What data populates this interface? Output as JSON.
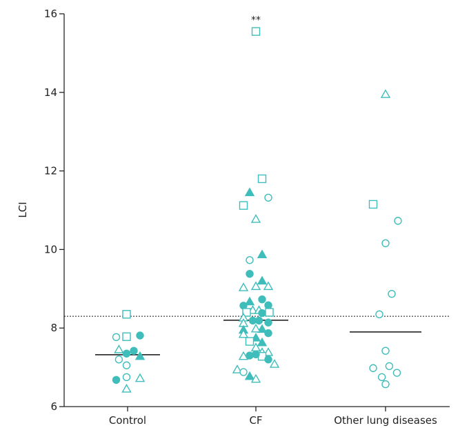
{
  "colors": {
    "marker": "#3fbdbb",
    "axis": "#222222",
    "line": "#111111"
  },
  "chart_data": {
    "type": "scatter",
    "ylabel": "LCI",
    "xlabel": "",
    "ylim": [
      6,
      16
    ],
    "yticks": [
      6,
      8,
      10,
      12,
      14,
      16
    ],
    "categories": [
      "Control",
      "CF",
      "Other lung diseases"
    ],
    "threshold_line": {
      "y": 8.3,
      "style": "dotted"
    },
    "means": [
      7.32,
      8.2,
      7.9
    ],
    "annotations": [
      {
        "text": "**",
        "category": "CF",
        "y": 15.85
      }
    ],
    "points": [
      {
        "g": 0,
        "dx": -0.55,
        "y": 7.77,
        "m": "circle",
        "f": false
      },
      {
        "g": 0,
        "dx": -0.42,
        "y": 7.45,
        "m": "triangle",
        "f": false
      },
      {
        "g": 0,
        "dx": -0.42,
        "y": 7.2,
        "m": "circle",
        "f": false
      },
      {
        "g": 0,
        "dx": -0.55,
        "y": 6.68,
        "m": "circle",
        "f": true
      },
      {
        "g": 0,
        "dx": -0.05,
        "y": 8.35,
        "m": "square",
        "f": false
      },
      {
        "g": 0,
        "dx": -0.05,
        "y": 7.78,
        "m": "square",
        "f": false
      },
      {
        "g": 0,
        "dx": -0.05,
        "y": 7.35,
        "m": "circle",
        "f": true
      },
      {
        "g": 0,
        "dx": 0.3,
        "y": 7.42,
        "m": "circle",
        "f": true
      },
      {
        "g": 0,
        "dx": -0.05,
        "y": 7.05,
        "m": "circle",
        "f": false
      },
      {
        "g": 0,
        "dx": -0.05,
        "y": 6.75,
        "m": "circle",
        "f": false
      },
      {
        "g": 0,
        "dx": -0.05,
        "y": 6.45,
        "m": "triangle",
        "f": false
      },
      {
        "g": 0,
        "dx": 0.6,
        "y": 7.81,
        "m": "circle",
        "f": true
      },
      {
        "g": 0,
        "dx": 0.6,
        "y": 7.28,
        "m": "triangle",
        "f": true
      },
      {
        "g": 0,
        "dx": 0.6,
        "y": 6.72,
        "m": "triangle",
        "f": false
      },
      {
        "g": 1,
        "dx": 0.0,
        "y": 15.55,
        "m": "square",
        "f": false
      },
      {
        "g": 1,
        "dx": -0.3,
        "y": 11.45,
        "m": "triangle",
        "f": true
      },
      {
        "g": 1,
        "dx": 0.3,
        "y": 11.8,
        "m": "square",
        "f": false
      },
      {
        "g": 1,
        "dx": -0.6,
        "y": 11.12,
        "m": "square",
        "f": false
      },
      {
        "g": 1,
        "dx": 0.6,
        "y": 11.32,
        "m": "circle",
        "f": false
      },
      {
        "g": 1,
        "dx": 0.0,
        "y": 10.77,
        "m": "triangle",
        "f": false
      },
      {
        "g": 1,
        "dx": 0.3,
        "y": 9.87,
        "m": "triangle",
        "f": true
      },
      {
        "g": 1,
        "dx": -0.3,
        "y": 9.73,
        "m": "circle",
        "f": false
      },
      {
        "g": 1,
        "dx": -0.3,
        "y": 9.38,
        "m": "circle",
        "f": true
      },
      {
        "g": 1,
        "dx": 0.3,
        "y": 9.2,
        "m": "triangle",
        "f": true
      },
      {
        "g": 1,
        "dx": -0.6,
        "y": 9.03,
        "m": "triangle",
        "f": false
      },
      {
        "g": 1,
        "dx": 0.0,
        "y": 9.06,
        "m": "triangle",
        "f": false
      },
      {
        "g": 1,
        "dx": 0.6,
        "y": 9.06,
        "m": "triangle",
        "f": false
      },
      {
        "g": 1,
        "dx": 0.3,
        "y": 8.73,
        "m": "circle",
        "f": true
      },
      {
        "g": 1,
        "dx": -0.3,
        "y": 8.67,
        "m": "triangle",
        "f": true
      },
      {
        "g": 1,
        "dx": -0.6,
        "y": 8.57,
        "m": "circle",
        "f": true
      },
      {
        "g": 1,
        "dx": 0.6,
        "y": 8.58,
        "m": "circle",
        "f": true
      },
      {
        "g": 1,
        "dx": -0.15,
        "y": 8.45,
        "m": "triangle",
        "f": false
      },
      {
        "g": 1,
        "dx": 0.15,
        "y": 8.45,
        "m": "triangle",
        "f": false
      },
      {
        "g": 1,
        "dx": -0.45,
        "y": 8.4,
        "m": "square",
        "f": false
      },
      {
        "g": 1,
        "dx": 0.3,
        "y": 8.38,
        "m": "circle",
        "f": true
      },
      {
        "g": 1,
        "dx": 0.65,
        "y": 8.4,
        "m": "square",
        "f": false
      },
      {
        "g": 1,
        "dx": -0.6,
        "y": 8.26,
        "m": "triangle",
        "f": false
      },
      {
        "g": 1,
        "dx": -0.6,
        "y": 8.12,
        "m": "triangle",
        "f": false
      },
      {
        "g": 1,
        "dx": -0.15,
        "y": 8.19,
        "m": "circle",
        "f": true
      },
      {
        "g": 1,
        "dx": 0.15,
        "y": 8.19,
        "m": "circle",
        "f": true
      },
      {
        "g": 1,
        "dx": 0.6,
        "y": 8.14,
        "m": "circle",
        "f": true
      },
      {
        "g": 1,
        "dx": -0.6,
        "y": 7.95,
        "m": "triangle",
        "f": true
      },
      {
        "g": 1,
        "dx": 0.3,
        "y": 7.97,
        "m": "triangle",
        "f": true
      },
      {
        "g": 1,
        "dx": 0.0,
        "y": 7.98,
        "m": "triangle",
        "f": false
      },
      {
        "g": 1,
        "dx": 0.6,
        "y": 7.87,
        "m": "circle",
        "f": true
      },
      {
        "g": 1,
        "dx": -0.6,
        "y": 7.84,
        "m": "triangle",
        "f": false
      },
      {
        "g": 1,
        "dx": 0.0,
        "y": 7.75,
        "m": "triangle",
        "f": true
      },
      {
        "g": 1,
        "dx": -0.3,
        "y": 7.66,
        "m": "square",
        "f": false
      },
      {
        "g": 1,
        "dx": 0.3,
        "y": 7.63,
        "m": "triangle",
        "f": true
      },
      {
        "g": 1,
        "dx": 0.0,
        "y": 7.5,
        "m": "triangle",
        "f": false
      },
      {
        "g": 1,
        "dx": 0.3,
        "y": 7.38,
        "m": "triangle",
        "f": false
      },
      {
        "g": 1,
        "dx": 0.6,
        "y": 7.38,
        "m": "triangle",
        "f": false
      },
      {
        "g": 1,
        "dx": 0.3,
        "y": 7.28,
        "m": "square",
        "f": false
      },
      {
        "g": 1,
        "dx": -0.3,
        "y": 7.3,
        "m": "circle",
        "f": true
      },
      {
        "g": 1,
        "dx": 0.0,
        "y": 7.33,
        "m": "circle",
        "f": true
      },
      {
        "g": 1,
        "dx": -0.6,
        "y": 7.28,
        "m": "triangle",
        "f": false
      },
      {
        "g": 1,
        "dx": 0.6,
        "y": 7.2,
        "m": "circle",
        "f": true
      },
      {
        "g": 1,
        "dx": 0.9,
        "y": 7.08,
        "m": "triangle",
        "f": false
      },
      {
        "g": 1,
        "dx": -0.9,
        "y": 6.94,
        "m": "triangle",
        "f": false
      },
      {
        "g": 1,
        "dx": -0.6,
        "y": 6.88,
        "m": "circle",
        "f": false
      },
      {
        "g": 1,
        "dx": -0.3,
        "y": 6.77,
        "m": "triangle",
        "f": true
      },
      {
        "g": 1,
        "dx": 0.0,
        "y": 6.7,
        "m": "triangle",
        "f": false
      },
      {
        "g": 2,
        "dx": 0.0,
        "y": 13.95,
        "m": "triangle",
        "f": false
      },
      {
        "g": 2,
        "dx": -0.6,
        "y": 11.15,
        "m": "square",
        "f": false
      },
      {
        "g": 2,
        "dx": 0.6,
        "y": 10.73,
        "m": "circle",
        "f": false
      },
      {
        "g": 2,
        "dx": 0.0,
        "y": 10.16,
        "m": "circle",
        "f": false
      },
      {
        "g": 2,
        "dx": 0.3,
        "y": 8.87,
        "m": "circle",
        "f": false
      },
      {
        "g": 2,
        "dx": -0.3,
        "y": 8.35,
        "m": "circle",
        "f": false
      },
      {
        "g": 2,
        "dx": 0.0,
        "y": 7.42,
        "m": "circle",
        "f": false
      },
      {
        "g": 2,
        "dx": -0.6,
        "y": 6.98,
        "m": "circle",
        "f": false
      },
      {
        "g": 2,
        "dx": 0.18,
        "y": 7.03,
        "m": "circle",
        "f": false
      },
      {
        "g": 2,
        "dx": 0.55,
        "y": 6.86,
        "m": "circle",
        "f": false
      },
      {
        "g": 2,
        "dx": -0.18,
        "y": 6.75,
        "m": "circle",
        "f": false
      },
      {
        "g": 2,
        "dx": 0.0,
        "y": 6.57,
        "m": "circle",
        "f": false
      }
    ]
  }
}
